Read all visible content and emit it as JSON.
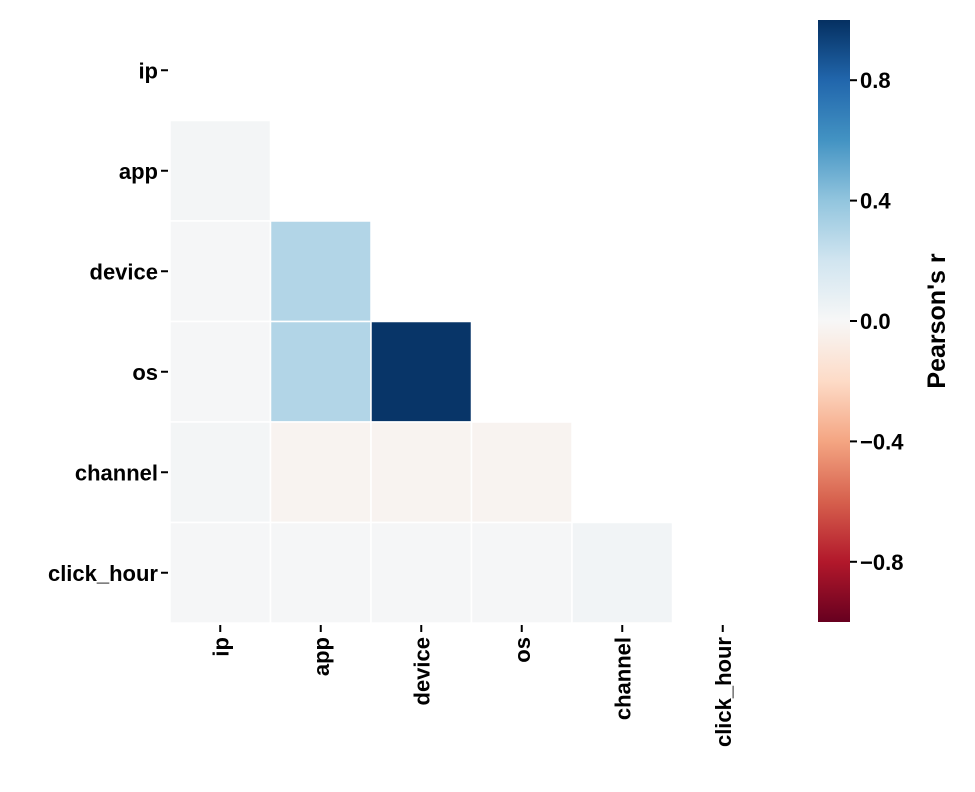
{
  "chart_data": {
    "type": "heatmap",
    "variables": [
      "ip",
      "app",
      "device",
      "os",
      "channel",
      "click_hour"
    ],
    "mask": "upper-triangle-including-diagonal",
    "matrix": [
      [
        null,
        null,
        null,
        null,
        null,
        null
      ],
      [
        0.02,
        null,
        null,
        null,
        null,
        null
      ],
      [
        0.01,
        0.3,
        null,
        null,
        null,
        null
      ],
      [
        0.01,
        0.3,
        0.98,
        null,
        null,
        null
      ],
      [
        0.02,
        -0.03,
        -0.03,
        -0.03,
        null,
        null
      ],
      [
        0.01,
        0.01,
        0.01,
        0.01,
        0.03,
        null
      ]
    ],
    "colormap": "RdBu",
    "vmin": -1,
    "vmax": 1,
    "colorbar": {
      "label": "Pearson's r",
      "ticks": [
        0.8,
        0.4,
        0.0,
        -0.4,
        -0.8
      ],
      "tick_labels": [
        "0.8",
        "0.4",
        "0.0",
        "−0.4",
        "−0.8"
      ]
    },
    "cell_border_color": "#ffffff"
  }
}
